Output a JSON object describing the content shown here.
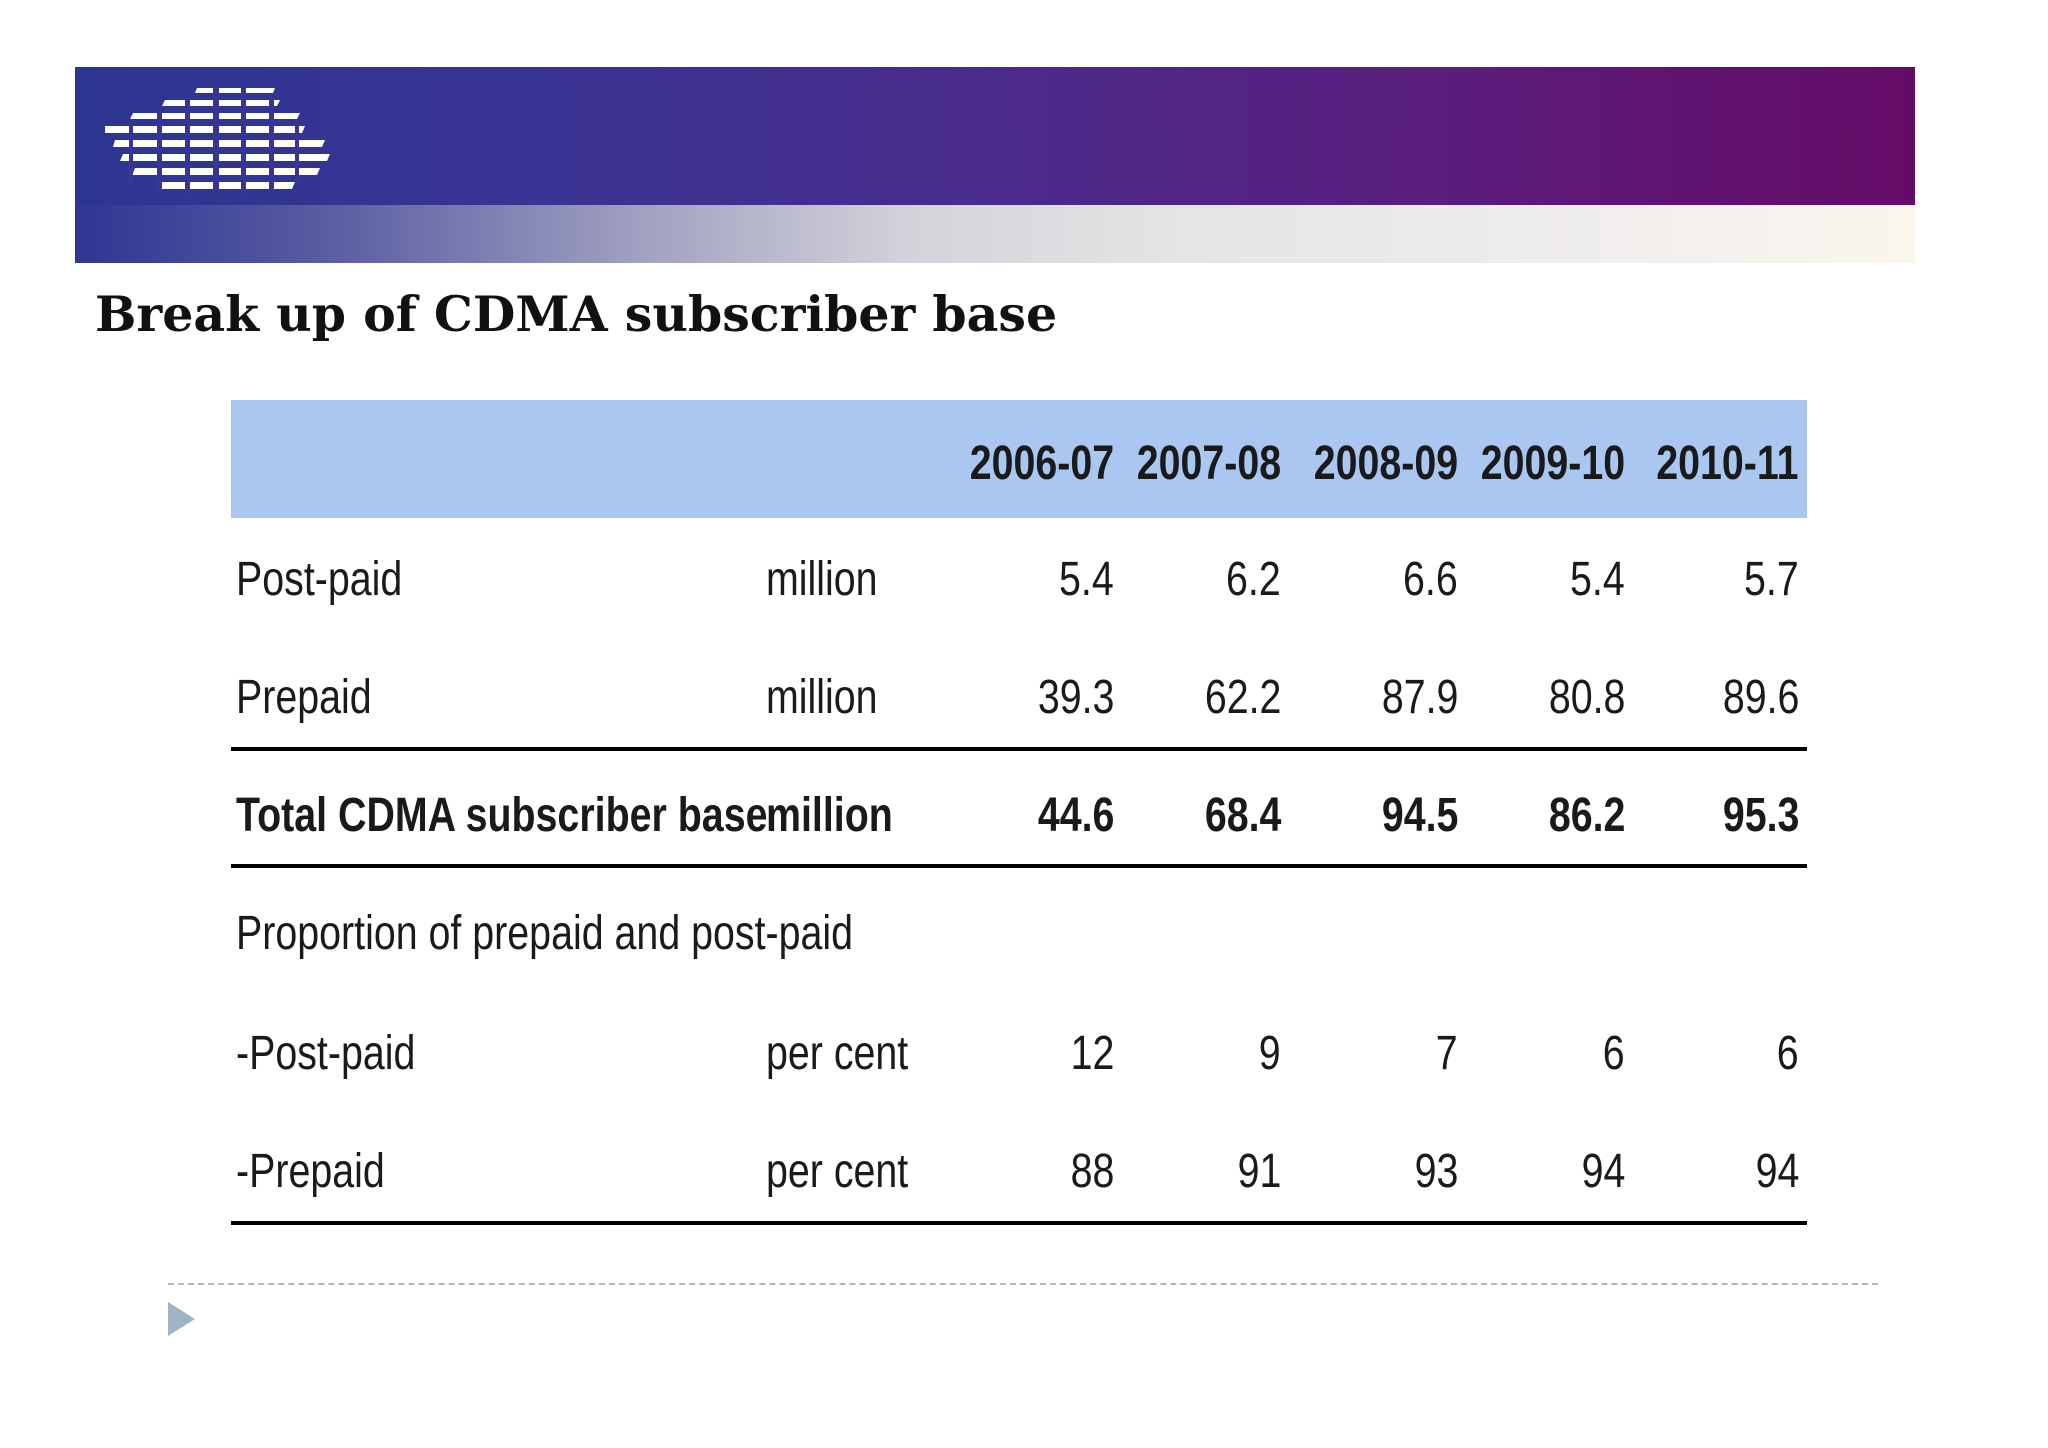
{
  "title": "Break up of CDMA subscriber base",
  "table": {
    "columns": [
      "2006-07",
      "2007-08",
      "2008-09",
      "2009-10",
      "2010-11"
    ],
    "rows": [
      {
        "label": "Post-paid",
        "unit": "million",
        "values": [
          "5.4",
          "6.2",
          "6.6",
          "5.4",
          "5.7"
        ]
      },
      {
        "label": "Prepaid",
        "unit": "million",
        "values": [
          "39.3",
          "62.2",
          "87.9",
          "80.8",
          "89.6"
        ]
      },
      {
        "label": "Total CDMA subscriber base",
        "unit": "million",
        "values": [
          "44.6",
          "68.4",
          "94.5",
          "86.2",
          "95.3"
        ]
      },
      {
        "label": "Proportion of prepaid and post-paid"
      },
      {
        "label": "-Post-paid",
        "unit": "per cent",
        "values": [
          "12",
          "9",
          "7",
          "6",
          "6"
        ]
      },
      {
        "label": "-Prepaid",
        "unit": "per cent",
        "values": [
          "88",
          "91",
          "93",
          "94",
          "94"
        ]
      }
    ]
  },
  "colors": {
    "header_fill": "#a9c7f1",
    "banner_start": "#2c3591",
    "banner_end": "#650b67",
    "bullet": "#9fb4c8"
  },
  "icons": {
    "logo": "striped-globe-logo",
    "bullet": "triangle-bullet-icon"
  }
}
